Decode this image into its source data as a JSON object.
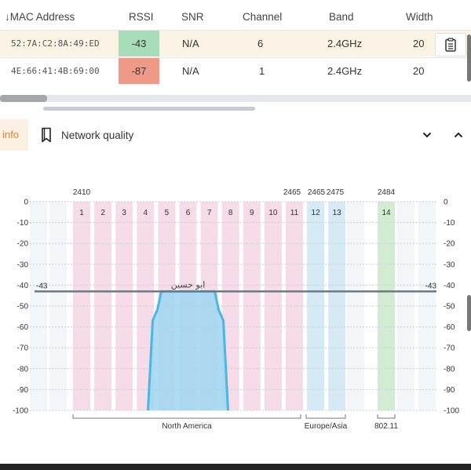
{
  "table": {
    "columns": [
      "MAC Address",
      "RSSI",
      "SNR",
      "Channel",
      "Band",
      "Width"
    ],
    "sort_indicator": "↓",
    "rows": [
      {
        "mac": "52:7A:C2:8A:49:ED",
        "rssi": "-43",
        "snr": "N/A",
        "channel": "6",
        "band": "2.4GHz",
        "width": "20",
        "rssi_color": "#a6dcb8"
      },
      {
        "mac": "4E:66:41:4B:69:00",
        "rssi": "-87",
        "snr": "N/A",
        "channel": "1",
        "band": "2.4GHz",
        "width": "20",
        "rssi_color": "#ef9a86"
      }
    ],
    "row_action_icon": "clipboard-icon"
  },
  "tabs": {
    "info_label": "info",
    "network_quality_label": "Network quality",
    "network_quality_icon": "bookmark-icon",
    "collapse_icon": "chevron-down-icon",
    "expand_icon": "chevron-up-icon",
    "info_color": "#e0852a"
  },
  "chart_data": {
    "type": "line",
    "y_ticks": [
      "0",
      "-10",
      "-20",
      "-30",
      "-40",
      "-50",
      "-60",
      "-70",
      "-80",
      "-90",
      "-100"
    ],
    "ylim": [
      -100,
      0
    ],
    "channels": [
      "1",
      "2",
      "3",
      "4",
      "5",
      "6",
      "7",
      "8",
      "9",
      "10",
      "11",
      "12",
      "13",
      "14"
    ],
    "freq_labels": [
      "2410",
      "2465",
      "2465",
      "2475",
      "2484"
    ],
    "regions": [
      "North America",
      "Europe/Asia",
      "802.11"
    ],
    "threshold": {
      "label_left": "-43",
      "label_right": "-43",
      "value": -43
    },
    "network": {
      "name": "ابو حسين",
      "channel": 6,
      "rssi": -43,
      "width_mhz": 20,
      "color": "#47b8e4"
    },
    "colors": {
      "north_america": "#f6dbe8",
      "europe": "#d6eaf6",
      "jp": "#d2ecd3"
    }
  }
}
